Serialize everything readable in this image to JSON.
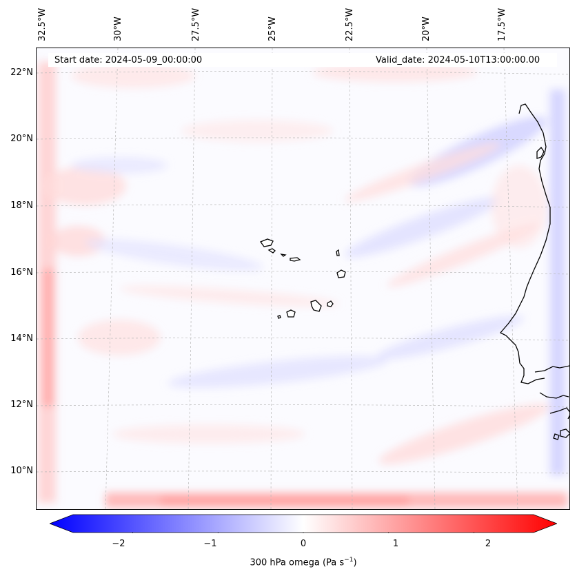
{
  "map": {
    "region": "Cabo Verde / Eastern Atlantic",
    "lon_ticks": [
      "32.5°W",
      "30°W",
      "27.5°W",
      "25°W",
      "22.5°W",
      "20°W",
      "17.5°W"
    ],
    "lat_ticks": [
      "22°N",
      "20°N",
      "18°N",
      "16°N",
      "14°N",
      "12°N",
      "10°N"
    ]
  },
  "header": {
    "start_label": "Start date: 2024-05-09_00:00:00",
    "valid_label": "Valid_date: 2024-05-10T13:00:00.00"
  },
  "colorbar": {
    "ticks": [
      "−2",
      "−1",
      "0",
      "1",
      "2"
    ],
    "label": "300 hPa omega (Pa s",
    "label_exp": "−1",
    "label_close": ")",
    "vmin": -2.7,
    "vmax": 2.7,
    "color_negative": "#0000ff",
    "color_zero": "#ffffff",
    "color_positive": "#ff0000"
  }
}
